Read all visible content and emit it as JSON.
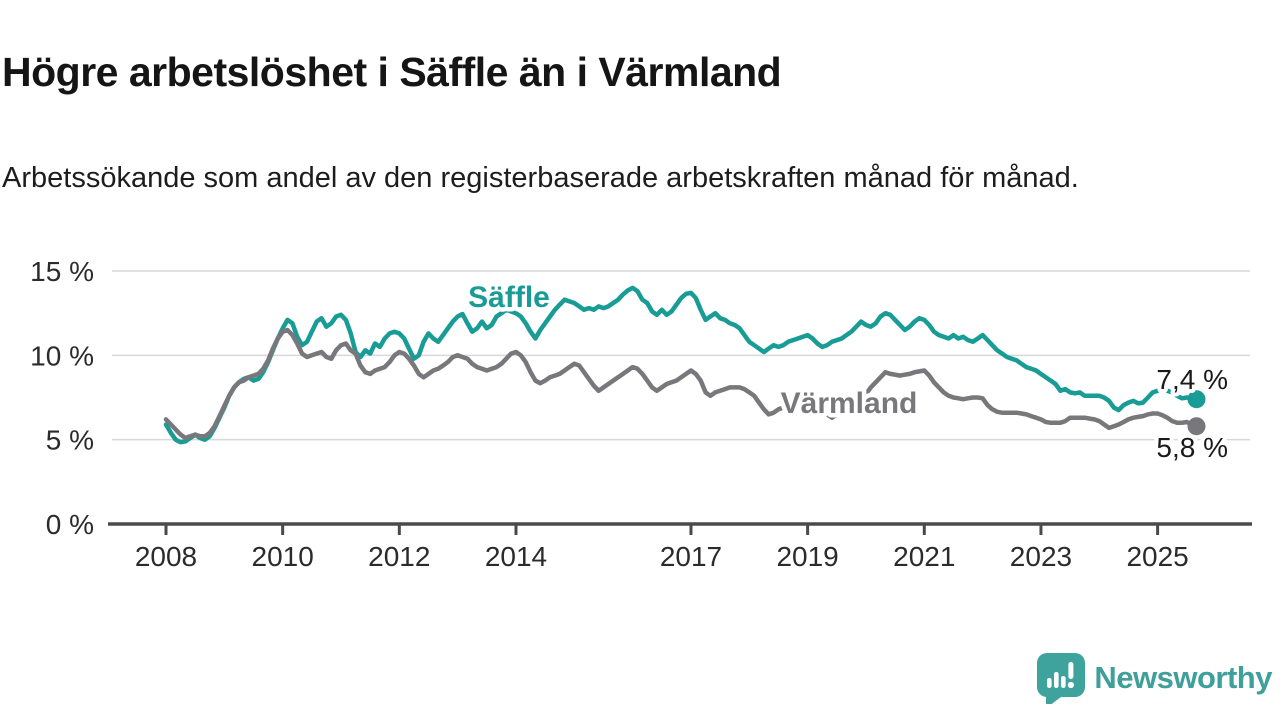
{
  "header": {
    "title": "Högre arbetslöshet i Säffle än i Värmland",
    "subtitle": "Arbetssökande som andel av den registerbaserade arbetskraften månad för månad."
  },
  "footer": {
    "brand": "Newsworthy"
  },
  "colors": {
    "saffle": "#189c95",
    "varmland": "#78787c",
    "axis": "#4a4a4a",
    "grid": "#d9d9d9",
    "tick_text": "#2b2b2b",
    "value_text": "#1a1a1a",
    "brand_teal": "#3fa39d"
  },
  "chart_data": {
    "type": "line",
    "unit": "%",
    "frequency": "monthly",
    "x_start_year": 2008,
    "x_end_label": "2025",
    "ylim": [
      0,
      15
    ],
    "grid": true,
    "yticks": [
      {
        "value": 15,
        "label": "15 %"
      },
      {
        "value": 10,
        "label": "10 %"
      },
      {
        "value": 5,
        "label": "5 %"
      },
      {
        "value": 0,
        "label": "0 %"
      }
    ],
    "xticks": [
      {
        "year": 2008,
        "label": "2008"
      },
      {
        "year": 2010,
        "label": "2010"
      },
      {
        "year": 2012,
        "label": "2012"
      },
      {
        "year": 2014,
        "label": "2014"
      },
      {
        "year": 2017,
        "label": "2017"
      },
      {
        "year": 2019,
        "label": "2019"
      },
      {
        "year": 2021,
        "label": "2021"
      },
      {
        "year": 2023,
        "label": "2023"
      },
      {
        "year": 2025,
        "label": "2025"
      }
    ],
    "series": [
      {
        "name": "Säffle",
        "color": "#189c95",
        "end_label": "7,4 %",
        "last_value": 7.4,
        "values": [
          5.9,
          5.4,
          5.0,
          4.85,
          4.9,
          5.1,
          5.3,
          5.1,
          5.0,
          5.2,
          5.7,
          6.3,
          6.9,
          7.6,
          8.1,
          8.4,
          8.6,
          8.7,
          8.5,
          8.6,
          9.0,
          9.6,
          10.3,
          11.0,
          11.6,
          12.1,
          11.9,
          11.1,
          10.6,
          10.8,
          11.4,
          12.0,
          12.2,
          11.7,
          11.9,
          12.3,
          12.4,
          12.1,
          11.3,
          10.2,
          9.9,
          10.3,
          10.1,
          10.7,
          10.5,
          11.0,
          11.3,
          11.4,
          11.3,
          11.0,
          10.4,
          9.8,
          10.0,
          10.8,
          11.3,
          11.0,
          10.8,
          11.2,
          11.6,
          12.0,
          12.3,
          12.45,
          11.9,
          11.4,
          11.6,
          12.0,
          11.6,
          11.8,
          12.3,
          12.5,
          12.7,
          12.6,
          12.5,
          12.3,
          11.9,
          11.4,
          11.0,
          11.5,
          11.9,
          12.3,
          12.7,
          13.0,
          13.3,
          13.2,
          13.1,
          12.9,
          12.7,
          12.8,
          12.7,
          12.9,
          12.8,
          12.9,
          13.1,
          13.3,
          13.6,
          13.85,
          14.0,
          13.8,
          13.3,
          13.1,
          12.6,
          12.4,
          12.7,
          12.4,
          12.6,
          13.0,
          13.4,
          13.65,
          13.7,
          13.4,
          12.7,
          12.1,
          12.3,
          12.5,
          12.2,
          12.1,
          11.9,
          11.8,
          11.6,
          11.2,
          10.8,
          10.6,
          10.4,
          10.2,
          10.4,
          10.6,
          10.5,
          10.6,
          10.8,
          10.9,
          11.0,
          11.1,
          11.2,
          11.0,
          10.7,
          10.5,
          10.6,
          10.8,
          10.9,
          11.0,
          11.2,
          11.4,
          11.7,
          12.0,
          11.8,
          11.7,
          11.9,
          12.3,
          12.5,
          12.4,
          12.1,
          11.8,
          11.5,
          11.7,
          12.0,
          12.2,
          12.1,
          11.8,
          11.4,
          11.2,
          11.1,
          11.0,
          11.2,
          11.0,
          11.1,
          10.9,
          10.8,
          11.0,
          11.2,
          10.9,
          10.6,
          10.3,
          10.1,
          9.9,
          9.8,
          9.7,
          9.5,
          9.3,
          9.2,
          9.1,
          8.9,
          8.7,
          8.5,
          8.3,
          7.9,
          8.0,
          7.8,
          7.75,
          7.8,
          7.6,
          7.6,
          7.6,
          7.6,
          7.5,
          7.3,
          6.9,
          6.75,
          7.05,
          7.2,
          7.3,
          7.15,
          7.2,
          7.5,
          7.8,
          7.9,
          8.1,
          7.9,
          7.8,
          7.6,
          7.45,
          7.5,
          7.45,
          7.4
        ]
      },
      {
        "name": "Värmland",
        "color": "#78787c",
        "end_label": "5,8 %",
        "last_value": 5.8,
        "values": [
          6.2,
          5.9,
          5.6,
          5.3,
          5.1,
          5.2,
          5.3,
          5.2,
          5.2,
          5.4,
          5.8,
          6.4,
          7.0,
          7.6,
          8.1,
          8.4,
          8.5,
          8.7,
          8.8,
          8.9,
          9.2,
          9.7,
          10.4,
          11.0,
          11.4,
          11.5,
          11.2,
          10.7,
          10.1,
          9.9,
          10.0,
          10.1,
          10.2,
          9.9,
          9.8,
          10.3,
          10.6,
          10.7,
          10.3,
          10.1,
          9.4,
          9.0,
          8.9,
          9.1,
          9.2,
          9.3,
          9.6,
          10.0,
          10.2,
          10.1,
          9.8,
          9.4,
          8.9,
          8.7,
          8.9,
          9.1,
          9.2,
          9.4,
          9.6,
          9.9,
          10.0,
          9.9,
          9.8,
          9.5,
          9.3,
          9.2,
          9.1,
          9.2,
          9.3,
          9.5,
          9.8,
          10.1,
          10.2,
          10.0,
          9.6,
          9.0,
          8.5,
          8.35,
          8.5,
          8.7,
          8.8,
          8.9,
          9.1,
          9.3,
          9.5,
          9.4,
          9.0,
          8.6,
          8.2,
          7.9,
          8.1,
          8.3,
          8.5,
          8.7,
          8.9,
          9.1,
          9.3,
          9.2,
          8.9,
          8.5,
          8.1,
          7.9,
          8.1,
          8.3,
          8.4,
          8.5,
          8.7,
          8.9,
          9.1,
          8.9,
          8.5,
          7.8,
          7.6,
          7.8,
          7.9,
          8.0,
          8.1,
          8.1,
          8.1,
          8.0,
          7.8,
          7.6,
          7.2,
          6.8,
          6.5,
          6.6,
          6.8,
          6.9,
          7.0,
          7.1,
          7.2,
          7.3,
          7.4,
          7.3,
          7.1,
          6.8,
          6.5,
          6.3,
          6.5,
          6.7,
          6.9,
          7.1,
          7.3,
          7.5,
          7.7,
          8.1,
          8.4,
          8.7,
          9.0,
          8.9,
          8.85,
          8.8,
          8.85,
          8.9,
          9.0,
          9.05,
          9.1,
          8.8,
          8.4,
          8.1,
          7.8,
          7.6,
          7.5,
          7.45,
          7.4,
          7.45,
          7.5,
          7.5,
          7.45,
          7.05,
          6.8,
          6.65,
          6.6,
          6.6,
          6.6,
          6.6,
          6.55,
          6.5,
          6.4,
          6.3,
          6.2,
          6.05,
          6.0,
          6.0,
          6.0,
          6.1,
          6.3,
          6.3,
          6.3,
          6.3,
          6.25,
          6.2,
          6.1,
          5.9,
          5.7,
          5.8,
          5.9,
          6.05,
          6.2,
          6.3,
          6.35,
          6.4,
          6.5,
          6.55,
          6.55,
          6.45,
          6.3,
          6.1,
          6.0,
          6.0,
          6.05,
          5.9,
          5.8
        ]
      }
    ]
  }
}
